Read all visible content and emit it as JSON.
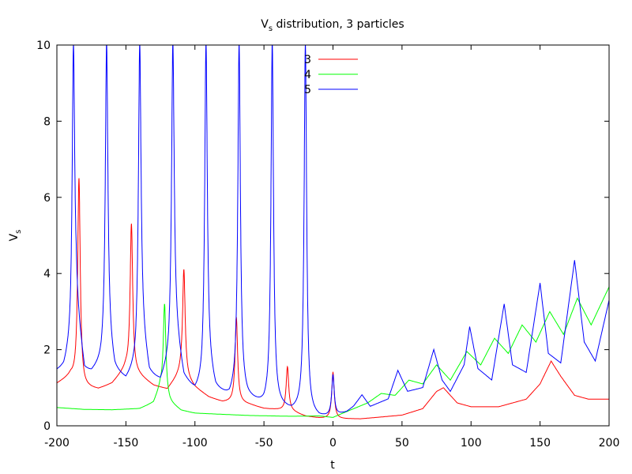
{
  "chart_data": {
    "type": "line",
    "title_main": "V",
    "title_sub": "s",
    "title_rest": " distribution, 3 particles",
    "xlabel": "t",
    "ylabel_main": "V",
    "ylabel_sub": "s",
    "xlim": [
      -200,
      200
    ],
    "ylim": [
      0,
      10
    ],
    "x_ticks": [
      -200,
      -150,
      -100,
      -50,
      0,
      50,
      100,
      150,
      200
    ],
    "y_ticks": [
      0,
      2,
      4,
      6,
      8,
      10
    ],
    "grid": false,
    "legend_position": "top-center",
    "series": [
      {
        "name": "3",
        "color": "#ff0000",
        "base_points": [
          [
            -200,
            1.1
          ],
          [
            -190,
            1.3
          ],
          [
            -180,
            1.0
          ],
          [
            -170,
            0.95
          ],
          [
            -160,
            1.1
          ],
          [
            -150,
            1.5
          ],
          [
            -140,
            1.3
          ],
          [
            -130,
            1.05
          ],
          [
            -120,
            0.95
          ],
          [
            -110,
            1.4
          ],
          [
            -100,
            1.0
          ],
          [
            -90,
            0.75
          ],
          [
            -80,
            0.62
          ],
          [
            -70,
            0.62
          ],
          [
            -60,
            0.55
          ],
          [
            -50,
            0.45
          ],
          [
            -40,
            0.42
          ],
          [
            -30,
            0.38
          ],
          [
            -20,
            0.25
          ],
          [
            -10,
            0.2
          ],
          [
            0,
            0.18
          ],
          [
            20,
            0.18
          ],
          [
            50,
            0.28
          ],
          [
            65,
            0.45
          ],
          [
            75,
            0.9
          ],
          [
            80,
            1.0
          ],
          [
            90,
            0.6
          ],
          [
            100,
            0.5
          ],
          [
            120,
            0.5
          ],
          [
            140,
            0.7
          ],
          [
            150,
            1.1
          ],
          [
            158,
            1.7
          ],
          [
            165,
            1.3
          ],
          [
            175,
            0.8
          ],
          [
            185,
            0.7
          ],
          [
            200,
            0.7
          ]
        ],
        "spikes": [
          [
            -184,
            6.5
          ],
          [
            -146,
            5.3
          ],
          [
            -108,
            4.1
          ],
          [
            -70,
            2.85
          ],
          [
            -33,
            1.55
          ],
          [
            0,
            1.4
          ]
        ]
      },
      {
        "name": "4",
        "color": "#00ff00",
        "base_points": [
          [
            -200,
            0.48
          ],
          [
            -180,
            0.43
          ],
          [
            -160,
            0.42
          ],
          [
            -140,
            0.45
          ],
          [
            -130,
            0.6
          ],
          [
            -125,
            1.0
          ],
          [
            -118,
            0.6
          ],
          [
            -110,
            0.4
          ],
          [
            -100,
            0.33
          ],
          [
            -60,
            0.27
          ],
          [
            -30,
            0.25
          ],
          [
            -10,
            0.26
          ],
          [
            0,
            0.22
          ],
          [
            5,
            0.3
          ],
          [
            15,
            0.45
          ],
          [
            25,
            0.6
          ],
          [
            35,
            0.85
          ],
          [
            45,
            0.8
          ],
          [
            55,
            1.2
          ],
          [
            65,
            1.1
          ],
          [
            75,
            1.6
          ],
          [
            85,
            1.2
          ],
          [
            97,
            1.95
          ],
          [
            107,
            1.6
          ],
          [
            117,
            2.3
          ],
          [
            127,
            1.9
          ],
          [
            137,
            2.65
          ],
          [
            147,
            2.2
          ],
          [
            157,
            3.0
          ],
          [
            167,
            2.4
          ],
          [
            177,
            3.35
          ],
          [
            187,
            2.65
          ],
          [
            200,
            3.65
          ]
        ],
        "spikes": [
          [
            -122,
            3.2
          ]
        ]
      },
      {
        "name": "5",
        "color": "#0000ff",
        "base_points": [
          [
            -200,
            1.42
          ],
          [
            -195,
            1.5
          ],
          [
            -190,
            2.0
          ],
          [
            -186,
            3.0
          ],
          [
            -180,
            1.4
          ],
          [
            -175,
            1.35
          ],
          [
            -168,
            1.6
          ],
          [
            -163,
            2.2
          ],
          [
            -158,
            1.4
          ],
          [
            -150,
            1.15
          ],
          [
            -143,
            1.5
          ],
          [
            -139,
            2.5
          ],
          [
            -133,
            1.3
          ],
          [
            -125,
            1.1
          ],
          [
            -119,
            1.6
          ],
          [
            -115,
            2.6
          ],
          [
            -108,
            1.2
          ],
          [
            -100,
            0.85
          ],
          [
            -95,
            1.0
          ],
          [
            -91,
            1.6
          ],
          [
            -85,
            0.9
          ],
          [
            -75,
            0.7
          ],
          [
            -68,
            1.0
          ],
          [
            -62,
            0.7
          ],
          [
            -50,
            0.5
          ],
          [
            -45,
            0.6
          ],
          [
            -40,
            0.5
          ],
          [
            -30,
            0.35
          ],
          [
            -22,
            0.4
          ],
          [
            -18,
            0.3
          ],
          [
            -10,
            0.2
          ],
          [
            0,
            0.22
          ],
          [
            10,
            0.35
          ],
          [
            15,
            0.5
          ],
          [
            21,
            0.8
          ],
          [
            27,
            0.5
          ],
          [
            40,
            0.7
          ],
          [
            47,
            1.45
          ],
          [
            54,
            0.9
          ],
          [
            65,
            1.0
          ],
          [
            73,
            2.0
          ],
          [
            79,
            1.2
          ],
          [
            85,
            0.9
          ],
          [
            95,
            1.6
          ],
          [
            99,
            2.6
          ],
          [
            105,
            1.5
          ],
          [
            115,
            1.2
          ],
          [
            124,
            3.2
          ],
          [
            130,
            1.6
          ],
          [
            140,
            1.4
          ],
          [
            150,
            3.75
          ],
          [
            156,
            1.9
          ],
          [
            165,
            1.65
          ],
          [
            175,
            4.35
          ],
          [
            182,
            2.2
          ],
          [
            190,
            1.7
          ],
          [
            200,
            3.3
          ]
        ],
        "spikes": [
          [
            -188,
            10
          ],
          [
            -164,
            10
          ],
          [
            -140,
            10
          ],
          [
            -116,
            10
          ],
          [
            -92,
            10
          ],
          [
            -68,
            10
          ],
          [
            -44,
            10
          ],
          [
            -20,
            10
          ],
          [
            0,
            1.3
          ]
        ]
      }
    ]
  }
}
